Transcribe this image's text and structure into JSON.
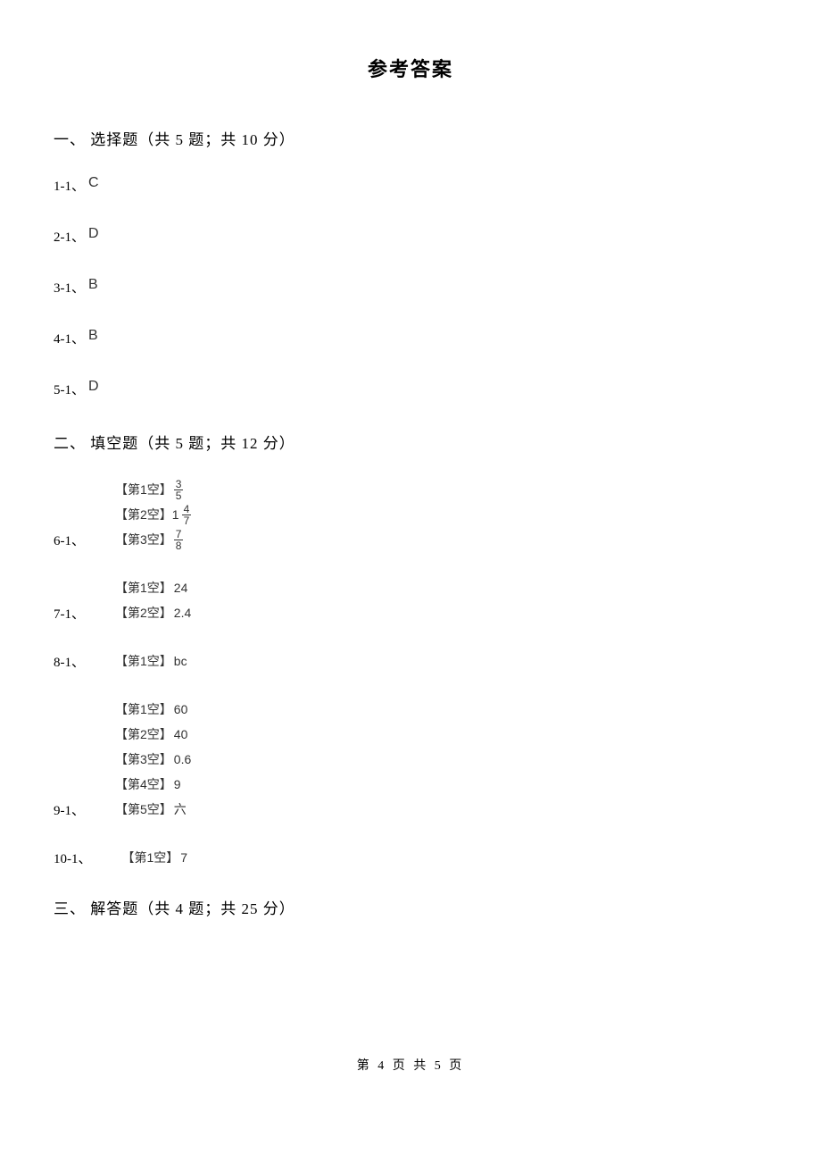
{
  "title": "参考答案",
  "sections": {
    "s1": {
      "header": "一、 选择题（共 5 题；共 10 分）",
      "answers": {
        "a1": {
          "label": "1-1、",
          "value": "C"
        },
        "a2": {
          "label": "2-1、",
          "value": "D"
        },
        "a3": {
          "label": "3-1、",
          "value": "B"
        },
        "a4": {
          "label": "4-1、",
          "value": "B"
        },
        "a5": {
          "label": "5-1、",
          "value": "D"
        }
      }
    },
    "s2": {
      "header": "二、 填空题（共 5 题；共 12 分）",
      "answers": {
        "a6": {
          "label": "6-1、",
          "blanks": {
            "b1": {
              "label": "【第1空】",
              "type": "fraction",
              "num": "3",
              "den": "5"
            },
            "b2": {
              "label": "【第2空】",
              "type": "mixed",
              "whole": "1",
              "num": "4",
              "den": "7"
            },
            "b3": {
              "label": "【第3空】",
              "type": "fraction",
              "num": "7",
              "den": "8"
            }
          }
        },
        "a7": {
          "label": "7-1、",
          "blanks": {
            "b1": {
              "label": "【第1空】",
              "type": "text",
              "value": "24"
            },
            "b2": {
              "label": "【第2空】",
              "type": "text",
              "value": "2.4"
            }
          }
        },
        "a8": {
          "label": "8-1、",
          "blanks": {
            "b1": {
              "label": "【第1空】",
              "type": "text",
              "value": "bc"
            }
          }
        },
        "a9": {
          "label": "9-1、",
          "blanks": {
            "b1": {
              "label": "【第1空】",
              "type": "text",
              "value": "60"
            },
            "b2": {
              "label": "【第2空】",
              "type": "text",
              "value": "40"
            },
            "b3": {
              "label": "【第3空】",
              "type": "text",
              "value": "0.6"
            },
            "b4": {
              "label": "【第4空】",
              "type": "text",
              "value": "9"
            },
            "b5": {
              "label": "【第5空】",
              "type": "text",
              "value": "六"
            }
          }
        },
        "a10": {
          "label": "10-1、",
          "blanks": {
            "b1": {
              "label": "【第1空】",
              "type": "text",
              "value": "7"
            }
          }
        }
      }
    },
    "s3": {
      "header": "三、 解答题（共 4 题；共 25 分）"
    }
  },
  "footer": "第 4 页 共 5 页",
  "colors": {
    "background": "#ffffff",
    "text": "#000000",
    "answerText": "#333333"
  }
}
